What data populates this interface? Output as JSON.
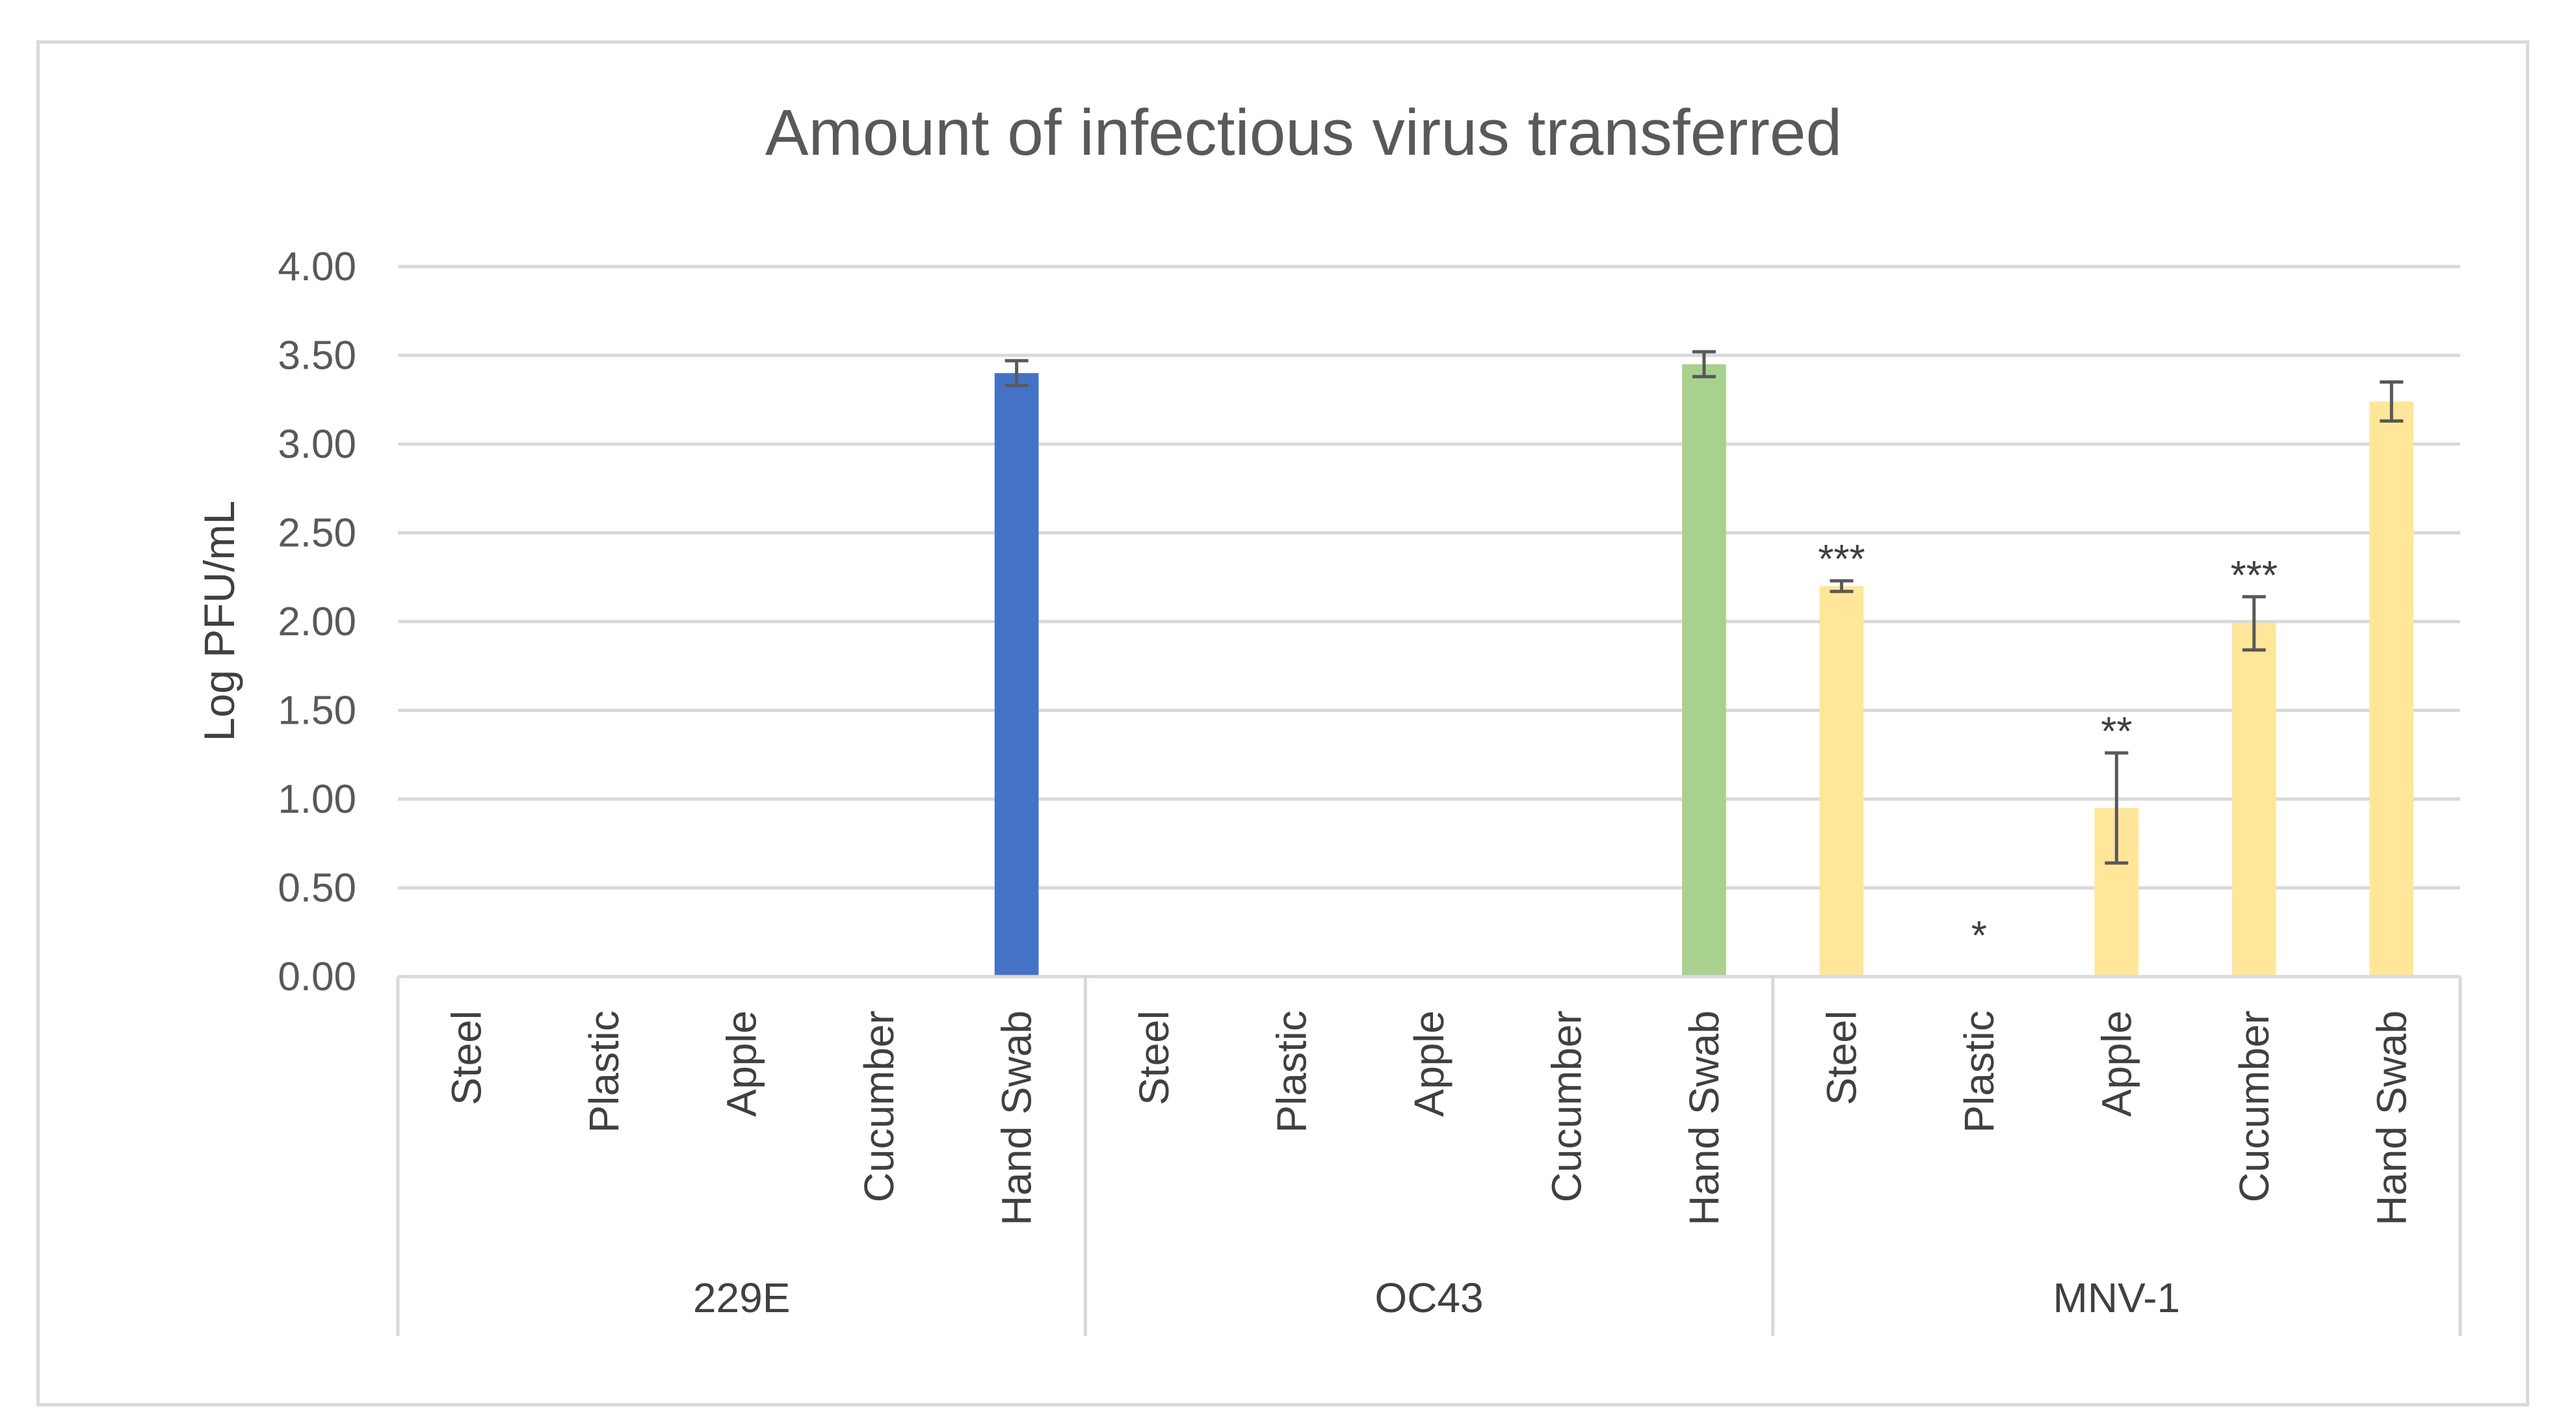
{
  "chart_data": {
    "type": "bar",
    "title": "Amount of infectious virus transferred",
    "xlabel": "",
    "ylabel": "Log PFU/mL",
    "ylim": [
      0,
      4
    ],
    "yticks": [
      "0.00",
      "0.50",
      "1.00",
      "1.50",
      "2.00",
      "2.50",
      "3.00",
      "3.50",
      "4.00"
    ],
    "grid": true,
    "groups": [
      {
        "name": "229E",
        "color": "#4472c4",
        "categories": [
          "Steel",
          "Plastic",
          "Apple",
          "Cucumber",
          "Hand Swab"
        ],
        "values": [
          0,
          0,
          0,
          0,
          3.4
        ],
        "errors": [
          null,
          null,
          null,
          null,
          0.07
        ],
        "significance": [
          "",
          "",
          "",
          "",
          ""
        ]
      },
      {
        "name": "OC43",
        "color": "#a9d18e",
        "categories": [
          "Steel",
          "Plastic",
          "Apple",
          "Cucumber",
          "Hand Swab"
        ],
        "values": [
          0,
          0,
          0,
          0,
          3.45
        ],
        "errors": [
          null,
          null,
          null,
          null,
          0.07
        ],
        "significance": [
          "",
          "",
          "",
          "",
          ""
        ]
      },
      {
        "name": "MNV-1",
        "color": "#ffe699",
        "categories": [
          "Steel",
          "Plastic",
          "Apple",
          "Cucumber",
          "Hand Swab"
        ],
        "values": [
          2.2,
          0,
          0.95,
          1.99,
          3.24
        ],
        "errors": [
          0.03,
          null,
          0.31,
          0.15,
          0.11
        ],
        "significance": [
          "***",
          "*",
          "**",
          "***",
          ""
        ]
      }
    ]
  }
}
